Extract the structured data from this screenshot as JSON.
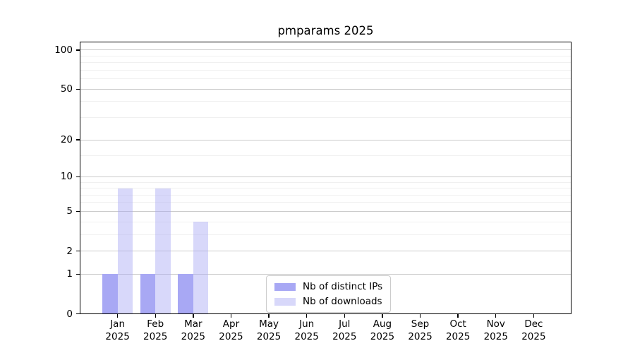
{
  "chart_data": {
    "type": "bar",
    "title": "pmparams 2025",
    "categories": [
      "Jan",
      "Feb",
      "Mar",
      "Apr",
      "May",
      "Jun",
      "Jul",
      "Aug",
      "Sep",
      "Oct",
      "Nov",
      "Dec"
    ],
    "category_sub_label": "2025",
    "series": [
      {
        "name": "Nb of distinct IPs",
        "color": "#a8a8f4",
        "alpha": 1,
        "values": [
          1,
          1,
          1,
          0,
          0,
          0,
          0,
          0,
          0,
          0,
          0,
          0
        ]
      },
      {
        "name": "Nb of downloads",
        "color": "#a8a8f4",
        "alpha": 0.45,
        "values": [
          8,
          8,
          4,
          0,
          0,
          0,
          0,
          0,
          0,
          0,
          0,
          0
        ]
      }
    ],
    "yscale": "log1p",
    "ylim": [
      0,
      116
    ],
    "xlim": [
      -1,
      12
    ],
    "yticks": [
      0,
      1,
      2,
      5,
      10,
      20,
      50,
      100
    ],
    "yticks_minor": [
      3,
      4,
      6,
      7,
      8,
      9,
      15,
      30,
      40,
      60,
      70,
      80,
      90
    ],
    "grid": true,
    "legend_position": "lower center"
  }
}
